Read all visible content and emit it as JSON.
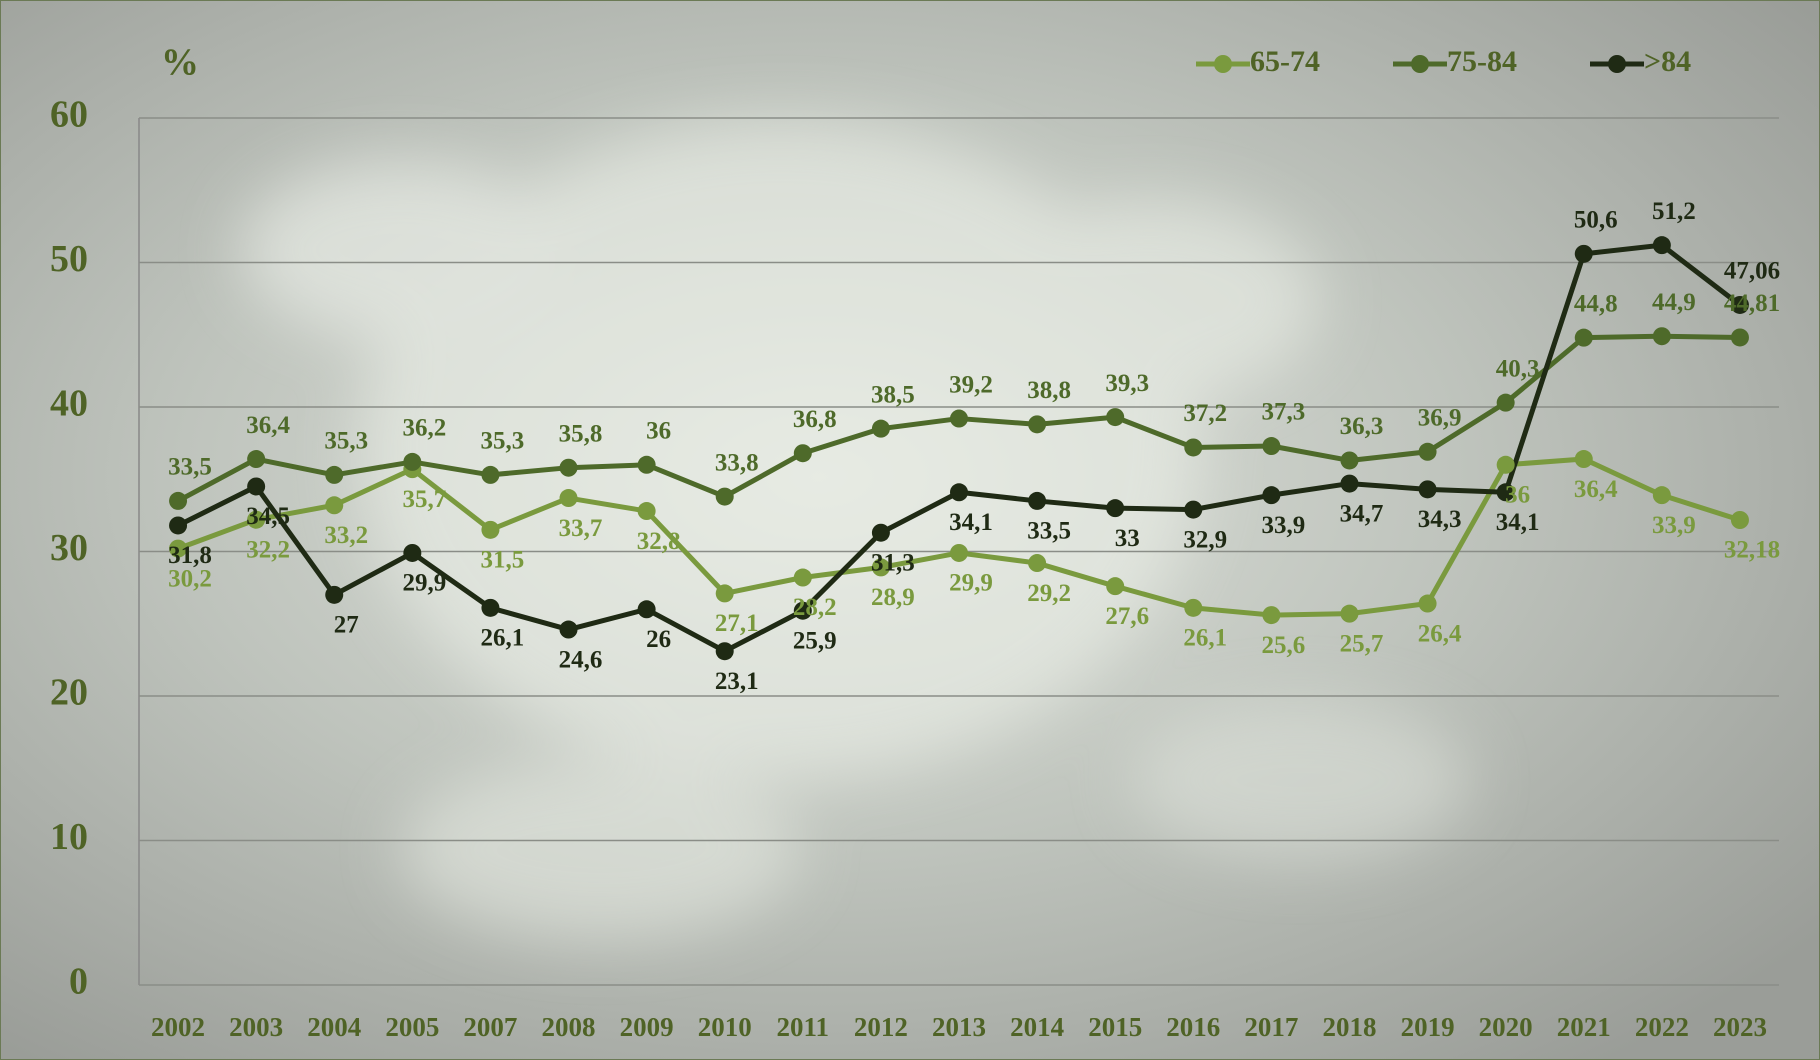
{
  "chart_data": {
    "type": "line",
    "ylabel": "%",
    "categories": [
      "2002",
      "2003",
      "2004",
      "2005",
      "2007",
      "2008",
      "2009",
      "2010",
      "2011",
      "2012",
      "2013",
      "2014",
      "2015",
      "2016",
      "2017",
      "2018",
      "2019",
      "2020",
      "2021",
      "2022",
      "2023"
    ],
    "series": [
      {
        "name": "65-74",
        "color": "#7a9a3e",
        "values": [
          30.2,
          32.2,
          33.2,
          35.7,
          31.5,
          33.7,
          32.8,
          27.1,
          28.2,
          28.9,
          29.9,
          29.2,
          27.6,
          26.1,
          25.6,
          25.7,
          26.4,
          36,
          36.4,
          33.9,
          32.18
        ],
        "value_labels": [
          "30,2",
          "32,2",
          "33,2",
          "35,7",
          "31,5",
          "33,7",
          "32,8",
          "27,1",
          "28,2",
          "28,9",
          "29,9",
          "29,2",
          "27,6",
          "26,1",
          "25,6",
          "25,7",
          "26,4",
          "36",
          "36,4",
          "33,9",
          "32,18"
        ]
      },
      {
        "name": "75-84",
        "color": "#4e6a2a",
        "values": [
          33.5,
          36.4,
          35.3,
          36.2,
          35.3,
          35.8,
          36,
          33.8,
          36.8,
          38.5,
          39.2,
          38.8,
          39.3,
          37.2,
          37.3,
          36.3,
          36.9,
          40.3,
          44.8,
          44.9,
          44.81
        ],
        "value_labels": [
          "33,5",
          "36,4",
          "35,3",
          "36,2",
          "35,3",
          "35,8",
          "36",
          "33,8",
          "36,8",
          "38,5",
          "39,2",
          "38,8",
          "39,3",
          "37,2",
          "37,3",
          "36,3",
          "36,9",
          "40,3",
          "44,8",
          "44,9",
          "44,81"
        ]
      },
      {
        "name": ">84",
        "color": "#1f2a14",
        "values": [
          31.8,
          34.5,
          27,
          29.9,
          26.1,
          24.6,
          26,
          23.1,
          25.9,
          31.3,
          34.1,
          33.5,
          33,
          32.9,
          33.9,
          34.7,
          34.3,
          34.1,
          50.6,
          51.2,
          47.06
        ],
        "value_labels": [
          "31,8",
          "34,5",
          "27",
          "29,9",
          "26,1",
          "24,6",
          "26",
          "23,1",
          "25,9",
          "31,3",
          "34,1",
          "33,5",
          "33",
          "32,9",
          "33,9",
          "34,7",
          "34,3",
          "34,1",
          "50,6",
          "51,2",
          "47,06"
        ]
      }
    ],
    "ylim": [
      0,
      60
    ],
    "yticks": [
      0,
      10,
      20,
      30,
      40,
      50,
      60
    ],
    "grid": true,
    "legend": "top-right"
  }
}
